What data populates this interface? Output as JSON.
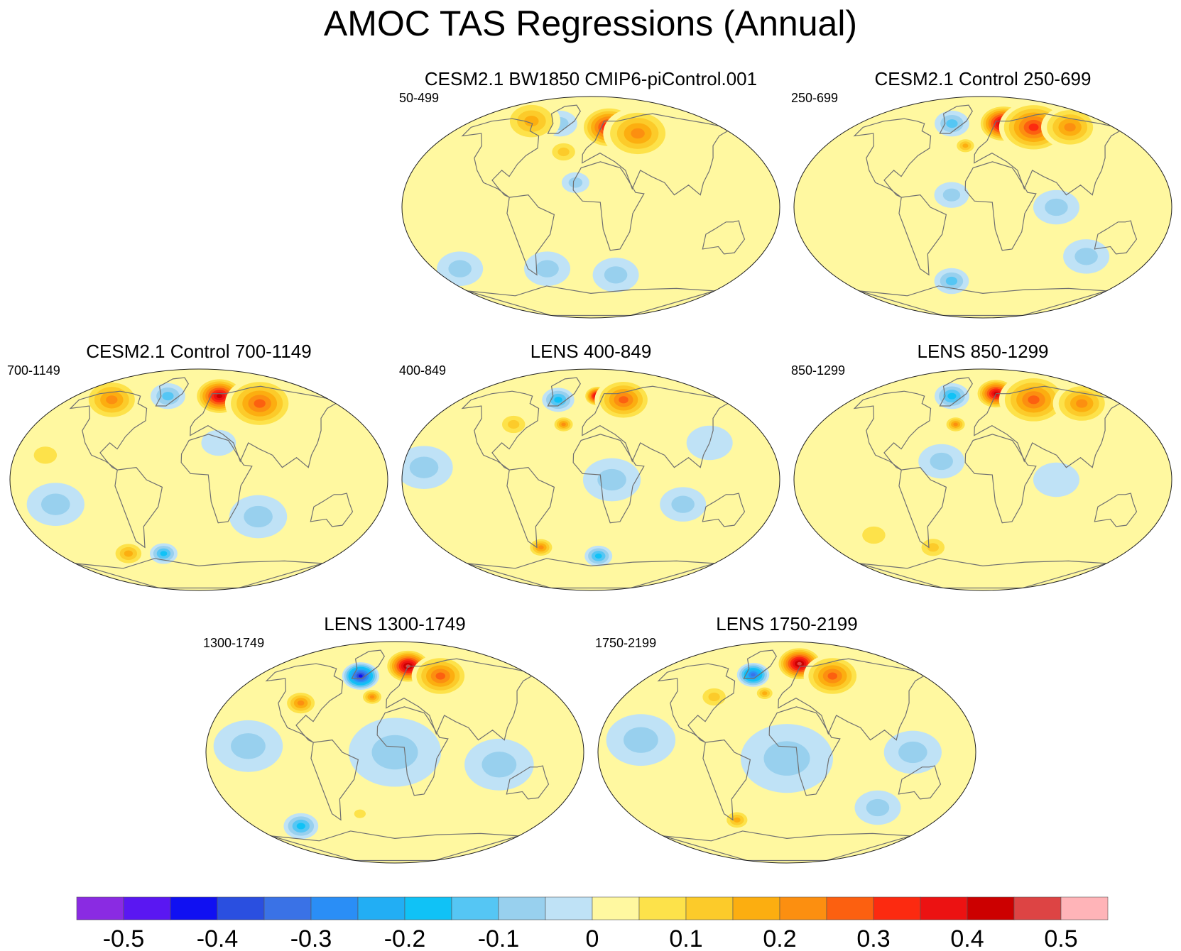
{
  "title": "AMOC TAS Regressions (Annual)",
  "colors": {
    "outline": "#222222",
    "land": "#707070",
    "levels": [
      "#8a2be2",
      "#5a17f2",
      "#1010f2",
      "#2a4fe0",
      "#3a72e6",
      "#2a8ef6",
      "#22aef4",
      "#10c2f6",
      "#55c6f4",
      "#98d0ee",
      "#bfe2f6",
      "#fff8a0",
      "#fde24a",
      "#fccb2a",
      "#fcae10",
      "#fc8f10",
      "#fc6010",
      "#fc2a10",
      "#ec1212",
      "#cc0000",
      "#dd4444",
      "#ffb4b8"
    ]
  },
  "chart_data": {
    "type": "heatmap",
    "title": "AMOC TAS Regressions (Annual)",
    "projection": "Robinson (global, centered on 0° longitude)",
    "colorbar": {
      "tick_labels": [
        "-0.5",
        "-0.4",
        "-0.3",
        "-0.2",
        "-0.1",
        "0",
        "0.1",
        "0.2",
        "0.3",
        "0.4",
        "0.5"
      ],
      "tick_values": [
        -0.5,
        -0.4,
        -0.3,
        -0.2,
        -0.1,
        0,
        0.1,
        0.2,
        0.3,
        0.4,
        0.5
      ],
      "boundaries": [
        -0.55,
        -0.5,
        -0.45,
        -0.4,
        -0.35,
        -0.3,
        -0.25,
        -0.2,
        -0.15,
        -0.1,
        -0.05,
        0,
        0.05,
        0.1,
        0.15,
        0.2,
        0.25,
        0.3,
        0.35,
        0.4,
        0.45,
        0.5,
        0.55
      ],
      "orientation": "horizontal"
    },
    "panels": [
      {
        "title": "CESM2.1 BW1850 CMIP6-piControl.001",
        "label": "50-499",
        "features": [
          {
            "lon": 25,
            "lat": 65,
            "value": 0.4,
            "radius": 25
          },
          {
            "lon": 60,
            "lat": 60,
            "value": 0.25,
            "radius": 30
          },
          {
            "lon": -45,
            "lat": 68,
            "value": -0.1,
            "radius": 15
          },
          {
            "lon": -30,
            "lat": 45,
            "value": 0.15,
            "radius": 15
          },
          {
            "lon": -90,
            "lat": 70,
            "value": 0.2,
            "radius": 25
          },
          {
            "lon": -120,
            "lat": 0,
            "value": 0.05,
            "radius": 45
          },
          {
            "lon": 100,
            "lat": 10,
            "value": 0.05,
            "radius": 30
          },
          {
            "lon": -50,
            "lat": -50,
            "value": -0.1,
            "radius": 20
          },
          {
            "lon": 30,
            "lat": -55,
            "value": -0.1,
            "radius": 20
          },
          {
            "lon": -15,
            "lat": 20,
            "value": -0.08,
            "radius": 12
          },
          {
            "lon": -150,
            "lat": -50,
            "value": -0.08,
            "radius": 20
          }
        ]
      },
      {
        "title": "CESM2.1 Control 250-699",
        "label": "250-699",
        "features": [
          {
            "lon": 30,
            "lat": 68,
            "value": 0.5,
            "radius": 22
          },
          {
            "lon": 70,
            "lat": 65,
            "value": 0.35,
            "radius": 30
          },
          {
            "lon": 120,
            "lat": 65,
            "value": 0.25,
            "radius": 25
          },
          {
            "lon": -45,
            "lat": 68,
            "value": -0.15,
            "radius": 15
          },
          {
            "lon": -20,
            "lat": 50,
            "value": 0.2,
            "radius": 10
          },
          {
            "lon": -120,
            "lat": 10,
            "value": 0.05,
            "radius": 40
          },
          {
            "lon": -30,
            "lat": 10,
            "value": -0.08,
            "radius": 15
          },
          {
            "lon": 70,
            "lat": 0,
            "value": -0.08,
            "radius": 20
          },
          {
            "lon": -40,
            "lat": -60,
            "value": -0.15,
            "radius": 15
          },
          {
            "lon": 110,
            "lat": -40,
            "value": -0.08,
            "radius": 20
          }
        ]
      },
      {
        "title": "CESM2.1 Control 700-1149",
        "label": "700-1149",
        "features": [
          {
            "lon": 30,
            "lat": 68,
            "value": 0.45,
            "radius": 22
          },
          {
            "lon": 80,
            "lat": 62,
            "value": 0.3,
            "radius": 30
          },
          {
            "lon": -120,
            "lat": 65,
            "value": 0.25,
            "radius": 25
          },
          {
            "lon": -45,
            "lat": 68,
            "value": -0.15,
            "radius": 15
          },
          {
            "lon": -150,
            "lat": 20,
            "value": 0.1,
            "radius": 20
          },
          {
            "lon": -140,
            "lat": -20,
            "value": -0.08,
            "radius": 25
          },
          {
            "lon": 60,
            "lat": -30,
            "value": -0.08,
            "radius": 25
          },
          {
            "lon": -90,
            "lat": -60,
            "value": 0.2,
            "radius": 15
          },
          {
            "lon": -45,
            "lat": -60,
            "value": -0.2,
            "radius": 12
          },
          {
            "lon": 20,
            "lat": 30,
            "value": -0.05,
            "radius": 15
          }
        ]
      },
      {
        "title": "LENS 400-849",
        "label": "400-849",
        "features": [
          {
            "lon": 10,
            "lat": 68,
            "value": 0.5,
            "radius": 12
          },
          {
            "lon": 45,
            "lat": 65,
            "value": 0.3,
            "radius": 25
          },
          {
            "lon": -45,
            "lat": 65,
            "value": -0.2,
            "radius": 14
          },
          {
            "lon": -30,
            "lat": 45,
            "value": 0.25,
            "radius": 10
          },
          {
            "lon": -85,
            "lat": 45,
            "value": 0.15,
            "radius": 15
          },
          {
            "lon": 20,
            "lat": 0,
            "value": -0.1,
            "radius": 25
          },
          {
            "lon": -160,
            "lat": 10,
            "value": -0.08,
            "radius": 25
          },
          {
            "lon": 90,
            "lat": -20,
            "value": -0.08,
            "radius": 20
          },
          {
            "lon": -60,
            "lat": -55,
            "value": 0.25,
            "radius": 12
          },
          {
            "lon": 10,
            "lat": -62,
            "value": -0.2,
            "radius": 12
          },
          {
            "lon": 120,
            "lat": 30,
            "value": -0.05,
            "radius": 20
          }
        ]
      },
      {
        "title": "LENS 850-1299",
        "label": "850-1299",
        "features": [
          {
            "lon": 20,
            "lat": 70,
            "value": 0.45,
            "radius": 18
          },
          {
            "lon": 70,
            "lat": 65,
            "value": 0.3,
            "radius": 30
          },
          {
            "lon": 130,
            "lat": 62,
            "value": 0.25,
            "radius": 25
          },
          {
            "lon": -45,
            "lat": 68,
            "value": -0.2,
            "radius": 15
          },
          {
            "lon": -30,
            "lat": 45,
            "value": 0.25,
            "radius": 10
          },
          {
            "lon": -40,
            "lat": 15,
            "value": -0.08,
            "radius": 20
          },
          {
            "lon": 70,
            "lat": 0,
            "value": -0.05,
            "radius": 20
          },
          {
            "lon": -60,
            "lat": -55,
            "value": 0.15,
            "radius": 15
          },
          {
            "lon": -120,
            "lat": -45,
            "value": 0.08,
            "radius": 20
          }
        ]
      },
      {
        "title": "LENS 1300-1749",
        "label": "1300-1749",
        "features": [
          {
            "lon": 20,
            "lat": 70,
            "value": 0.5,
            "radius": 20
          },
          {
            "lon": 60,
            "lat": 62,
            "value": 0.3,
            "radius": 25
          },
          {
            "lon": -45,
            "lat": 62,
            "value": -0.45,
            "radius": 16
          },
          {
            "lon": -25,
            "lat": 45,
            "value": 0.25,
            "radius": 10
          },
          {
            "lon": -100,
            "lat": 40,
            "value": 0.25,
            "radius": 15
          },
          {
            "lon": 0,
            "lat": 0,
            "value": -0.1,
            "radius": 40
          },
          {
            "lon": -140,
            "lat": 5,
            "value": -0.1,
            "radius": 30
          },
          {
            "lon": 100,
            "lat": -10,
            "value": -0.08,
            "radius": 30
          },
          {
            "lon": -120,
            "lat": -60,
            "value": -0.2,
            "radius": 15
          },
          {
            "lon": -40,
            "lat": -50,
            "value": 0.1,
            "radius": 10
          }
        ]
      },
      {
        "title": "LENS 1750-2199",
        "label": "1750-2199",
        "features": [
          {
            "lon": 20,
            "lat": 72,
            "value": 0.5,
            "radius": 20
          },
          {
            "lon": 60,
            "lat": 62,
            "value": 0.3,
            "radius": 25
          },
          {
            "lon": -45,
            "lat": 63,
            "value": -0.35,
            "radius": 14
          },
          {
            "lon": -25,
            "lat": 48,
            "value": 0.2,
            "radius": 9
          },
          {
            "lon": -80,
            "lat": 45,
            "value": 0.15,
            "radius": 15
          },
          {
            "lon": 0,
            "lat": -5,
            "value": -0.1,
            "radius": 40
          },
          {
            "lon": -140,
            "lat": 10,
            "value": -0.1,
            "radius": 30
          },
          {
            "lon": 120,
            "lat": 0,
            "value": -0.08,
            "radius": 25
          },
          {
            "lon": -60,
            "lat": -55,
            "value": 0.2,
            "radius": 12
          },
          {
            "lon": 100,
            "lat": -45,
            "value": -0.1,
            "radius": 20
          }
        ]
      }
    ]
  }
}
